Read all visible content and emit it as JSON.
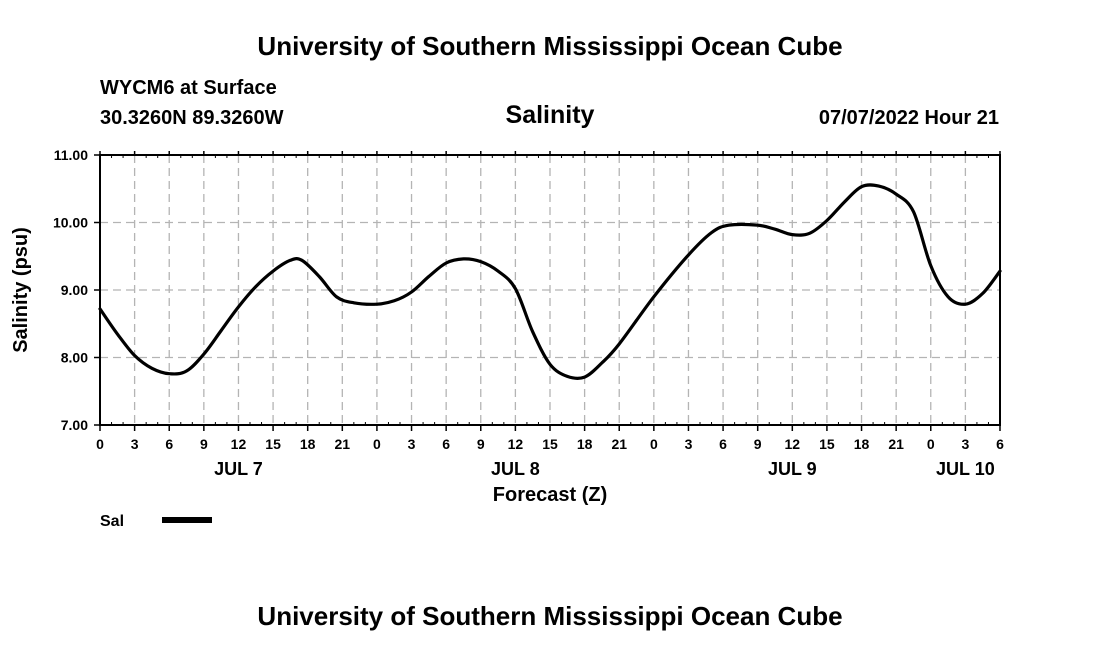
{
  "header": {
    "title_top": "University of Southern Mississippi Ocean Cube",
    "station": "WYCM6 at Surface",
    "coords": "30.3260N  89.3260W",
    "chart_title": "Salinity",
    "datetime": "07/07/2022 Hour 21",
    "title_bottom": "University of Southern Mississippi Ocean Cube"
  },
  "legend": {
    "label": "Sal",
    "color": "#000000"
  },
  "chart_data": {
    "type": "line",
    "title": "Salinity",
    "xlabel": "Forecast (Z)",
    "ylabel": "Salinity (psu)",
    "x_unit": "hours from Jul 7 00Z",
    "xlim": [
      0,
      78
    ],
    "ylim": [
      7.0,
      11.0
    ],
    "y_ticks": [
      "7.00",
      "8.00",
      "9.00",
      "10.00",
      "11.00"
    ],
    "x_ticks": [
      {
        "hour": 0,
        "label": "0"
      },
      {
        "hour": 3,
        "label": "3"
      },
      {
        "hour": 6,
        "label": "6"
      },
      {
        "hour": 9,
        "label": "9"
      },
      {
        "hour": 12,
        "label": "12"
      },
      {
        "hour": 15,
        "label": "15"
      },
      {
        "hour": 18,
        "label": "18"
      },
      {
        "hour": 21,
        "label": "21"
      },
      {
        "hour": 24,
        "label": "0"
      },
      {
        "hour": 27,
        "label": "3"
      },
      {
        "hour": 30,
        "label": "6"
      },
      {
        "hour": 33,
        "label": "9"
      },
      {
        "hour": 36,
        "label": "12"
      },
      {
        "hour": 39,
        "label": "15"
      },
      {
        "hour": 42,
        "label": "18"
      },
      {
        "hour": 45,
        "label": "21"
      },
      {
        "hour": 48,
        "label": "0"
      },
      {
        "hour": 51,
        "label": "3"
      },
      {
        "hour": 54,
        "label": "6"
      },
      {
        "hour": 57,
        "label": "9"
      },
      {
        "hour": 60,
        "label": "12"
      },
      {
        "hour": 63,
        "label": "15"
      },
      {
        "hour": 66,
        "label": "18"
      },
      {
        "hour": 69,
        "label": "21"
      },
      {
        "hour": 72,
        "label": "0"
      },
      {
        "hour": 75,
        "label": "3"
      },
      {
        "hour": 78,
        "label": "6"
      }
    ],
    "day_labels": [
      {
        "hour": 12,
        "label": "JUL 7"
      },
      {
        "hour": 36,
        "label": "JUL 8"
      },
      {
        "hour": 60,
        "label": "JUL 9"
      },
      {
        "hour": 75,
        "label": "JUL 10"
      }
    ],
    "grid": true,
    "series": [
      {
        "name": "Sal",
        "points": [
          [
            0,
            8.72
          ],
          [
            1.5,
            8.35
          ],
          [
            3,
            8.03
          ],
          [
            4.5,
            7.84
          ],
          [
            6,
            7.76
          ],
          [
            7.5,
            7.8
          ],
          [
            9,
            8.05
          ],
          [
            10.5,
            8.4
          ],
          [
            12,
            8.75
          ],
          [
            13.5,
            9.05
          ],
          [
            15,
            9.28
          ],
          [
            16.5,
            9.44
          ],
          [
            17.5,
            9.44
          ],
          [
            19,
            9.2
          ],
          [
            20.5,
            8.9
          ],
          [
            22,
            8.81
          ],
          [
            24,
            8.79
          ],
          [
            25.5,
            8.84
          ],
          [
            27,
            8.97
          ],
          [
            28.5,
            9.2
          ],
          [
            30,
            9.4
          ],
          [
            31.5,
            9.46
          ],
          [
            33,
            9.42
          ],
          [
            34.5,
            9.28
          ],
          [
            36,
            9.02
          ],
          [
            37.5,
            8.38
          ],
          [
            39,
            7.9
          ],
          [
            40.5,
            7.72
          ],
          [
            42,
            7.71
          ],
          [
            43.5,
            7.92
          ],
          [
            45,
            8.2
          ],
          [
            48,
            8.9
          ],
          [
            51,
            9.52
          ],
          [
            53,
            9.85
          ],
          [
            54.5,
            9.96
          ],
          [
            57,
            9.96
          ],
          [
            58.5,
            9.9
          ],
          [
            60,
            9.82
          ],
          [
            61.5,
            9.84
          ],
          [
            63,
            10.03
          ],
          [
            64.5,
            10.3
          ],
          [
            66,
            10.53
          ],
          [
            67.5,
            10.54
          ],
          [
            69,
            10.42
          ],
          [
            70.5,
            10.16
          ],
          [
            72,
            9.36
          ],
          [
            73.5,
            8.9
          ],
          [
            75,
            8.79
          ],
          [
            76.5,
            8.95
          ],
          [
            78,
            9.28
          ]
        ]
      }
    ]
  }
}
